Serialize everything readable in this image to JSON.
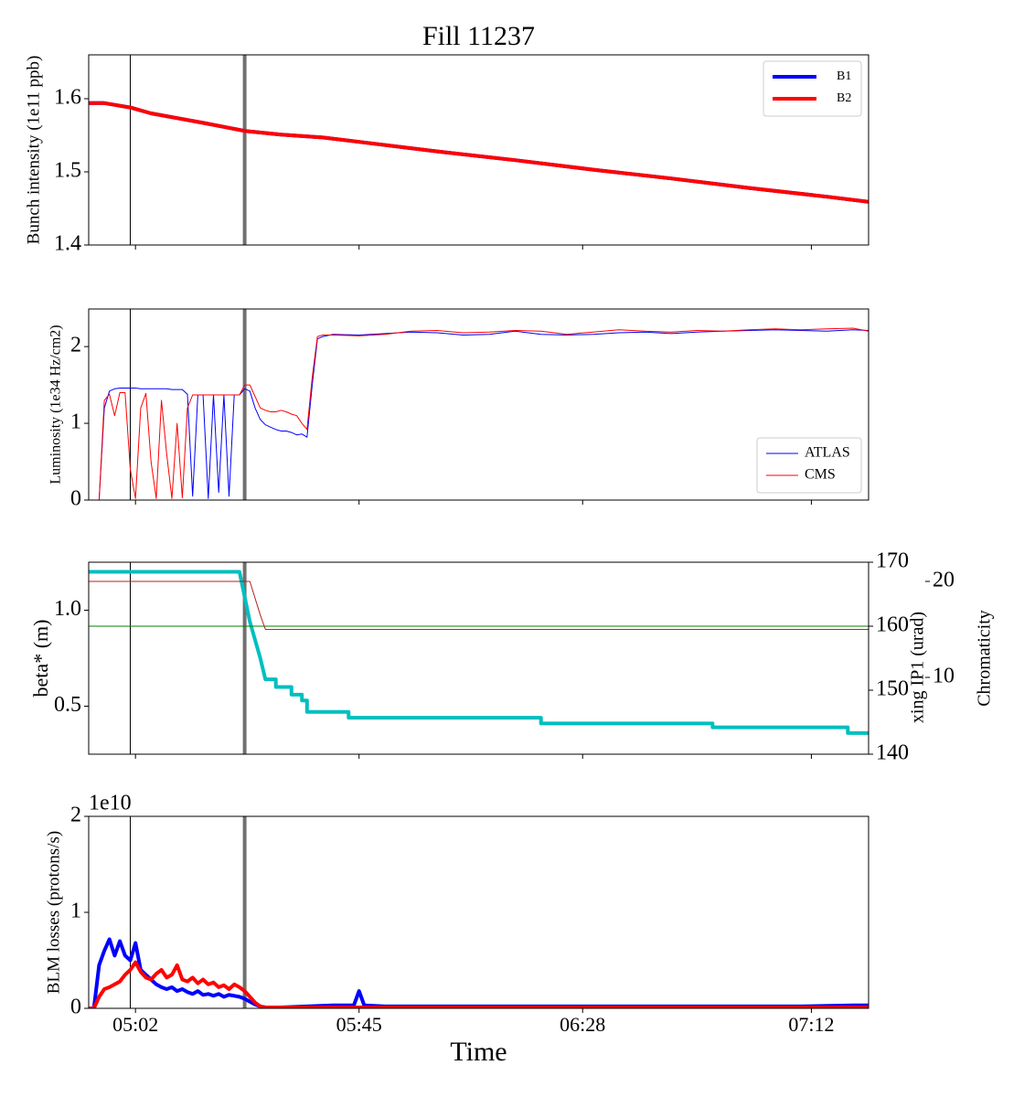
{
  "chart_data": [
    {
      "type": "line",
      "title": "Fill 11237",
      "ylabel": "Bunch intensity (1e11 ppb)",
      "x": [
        "04:53",
        "04:56",
        "05:01",
        "05:05",
        "05:15",
        "05:23",
        "05:30",
        "05:38",
        "05:45",
        "06:00",
        "06:15",
        "06:30",
        "06:45",
        "07:00",
        "07:15",
        "07:23"
      ],
      "series": [
        {
          "name": "B1",
          "color": "#0000ff",
          "values": [
            1.594,
            1.594,
            1.588,
            1.58,
            1.567,
            1.556,
            1.551,
            1.547,
            1.541,
            1.528,
            1.516,
            1.503,
            1.491,
            1.478,
            1.466,
            1.459
          ]
        },
        {
          "name": "B2",
          "color": "#ff0000",
          "values": [
            1.594,
            1.594,
            1.588,
            1.58,
            1.567,
            1.556,
            1.551,
            1.547,
            1.541,
            1.528,
            1.516,
            1.503,
            1.491,
            1.478,
            1.466,
            1.459
          ]
        }
      ],
      "xlim": [
        "04:53",
        "07:23"
      ],
      "xticks": [
        "05:02",
        "05:45",
        "06:28",
        "07:12"
      ],
      "ylim": [
        1.4,
        1.66
      ],
      "yticks": [
        1.4,
        1.5,
        1.6
      ],
      "legend": "upper right",
      "vlines": [
        {
          "x": "05:01",
          "color": "#000000"
        },
        {
          "x": "05:23",
          "color": "#707070"
        }
      ]
    },
    {
      "type": "line",
      "ylabel": "Luminosity (1e34 Hz/cm2)",
      "x": [
        "04:53",
        "04:54",
        "04:55",
        "04:56",
        "04:57",
        "04:58",
        "04:59",
        "05:00",
        "05:01",
        "05:02",
        "05:03",
        "05:04",
        "05:05",
        "05:06",
        "05:07",
        "05:08",
        "05:09",
        "05:10",
        "05:11",
        "05:12",
        "05:13",
        "05:14",
        "05:15",
        "05:16",
        "05:17",
        "05:18",
        "05:19",
        "05:20",
        "05:21",
        "05:22",
        "05:23",
        "05:24",
        "05:25",
        "05:26",
        "05:27",
        "05:28",
        "05:29",
        "05:30",
        "05:31",
        "05:32",
        "05:33",
        "05:34",
        "05:35",
        "05:36",
        "05:37",
        "05:38",
        "05:40",
        "05:45",
        "05:50",
        "05:55",
        "06:00",
        "06:05",
        "06:10",
        "06:15",
        "06:20",
        "06:25",
        "06:30",
        "06:35",
        "06:40",
        "06:45",
        "06:50",
        "06:55",
        "07:00",
        "07:05",
        "07:10",
        "07:15",
        "07:20",
        "07:23"
      ],
      "series": [
        {
          "name": "ATLAS",
          "color": "#0000ff",
          "values": [
            0,
            0,
            0,
            1.2,
            1.42,
            1.45,
            1.46,
            1.46,
            1.46,
            1.46,
            1.45,
            1.45,
            1.45,
            1.45,
            1.45,
            1.45,
            1.44,
            1.44,
            1.44,
            1.38,
            0.05,
            1.37,
            1.37,
            0.02,
            1.37,
            0.1,
            1.37,
            0.05,
            1.37,
            1.37,
            1.45,
            1.42,
            1.2,
            1.05,
            0.98,
            0.95,
            0.92,
            0.9,
            0.9,
            0.88,
            0.85,
            0.86,
            0.82,
            1.5,
            2.1,
            2.13,
            2.16,
            2.15,
            2.17,
            2.19,
            2.18,
            2.15,
            2.16,
            2.2,
            2.16,
            2.15,
            2.16,
            2.18,
            2.19,
            2.17,
            2.19,
            2.2,
            2.21,
            2.22,
            2.21,
            2.2,
            2.22,
            2.21
          ]
        },
        {
          "name": "CMS",
          "color": "#ff0000",
          "values": [
            0,
            0,
            0,
            1.3,
            1.38,
            1.1,
            1.4,
            1.4,
            0.4,
            0.02,
            1.2,
            1.39,
            0.5,
            0.02,
            1.3,
            0.6,
            0.02,
            1.0,
            0.03,
            1.2,
            1.37,
            1.37,
            1.37,
            1.37,
            1.37,
            1.37,
            1.37,
            1.37,
            1.37,
            1.37,
            1.5,
            1.5,
            1.35,
            1.2,
            1.17,
            1.15,
            1.15,
            1.17,
            1.15,
            1.12,
            1.1,
            1.0,
            0.92,
            1.6,
            2.13,
            2.15,
            2.15,
            2.14,
            2.16,
            2.2,
            2.21,
            2.18,
            2.19,
            2.21,
            2.2,
            2.16,
            2.19,
            2.22,
            2.2,
            2.19,
            2.21,
            2.2,
            2.22,
            2.23,
            2.22,
            2.23,
            2.24,
            2.2
          ]
        }
      ],
      "xlim": [
        "04:53",
        "07:23"
      ],
      "xticks": [
        "05:02",
        "05:45",
        "06:28",
        "07:12"
      ],
      "ylim": [
        0,
        2.49
      ],
      "yticks": [
        0,
        1,
        2
      ],
      "legend": "lower right",
      "vlines": [
        {
          "x": "05:01",
          "color": "#000000"
        },
        {
          "x": "05:23",
          "color": "#707070"
        }
      ]
    },
    {
      "type": "line",
      "ylabel": "beta* (m)",
      "y2label": "xing IP1 (urad)",
      "y3label": "Chromaticity",
      "x": [
        "04:53",
        "05:22",
        "05:24",
        "05:26",
        "05:27",
        "05:29",
        "05:29",
        "05:32",
        "05:32",
        "05:34",
        "05:34",
        "05:35",
        "05:35",
        "05:43",
        "05:43",
        "06:20",
        "06:20",
        "06:53",
        "06:53",
        "07:19",
        "07:19",
        "07:23"
      ],
      "series": [
        {
          "name": "beta*",
          "color": "#00bfbf",
          "values": [
            1.2,
            1.2,
            0.94,
            0.75,
            0.64,
            0.64,
            0.6,
            0.6,
            0.56,
            0.56,
            0.53,
            0.53,
            0.47,
            0.47,
            0.44,
            0.44,
            0.41,
            0.41,
            0.39,
            0.39,
            0.36,
            0.36
          ]
        },
        {
          "name": "xing IP1",
          "color": "#008000",
          "axis": "y2",
          "values": [
            160,
            160,
            160,
            160,
            160,
            160,
            160,
            160,
            160,
            160,
            160,
            160,
            160,
            160,
            160,
            160,
            160,
            160,
            160,
            160,
            160,
            160
          ]
        },
        {
          "name": "Chromaticity",
          "color": "#b22222",
          "axis": "y3",
          "values": [
            20,
            20,
            20,
            16.5,
            15,
            15,
            15,
            15,
            15,
            15,
            15,
            15,
            15,
            15,
            15,
            15,
            15,
            15,
            15,
            15,
            15,
            15
          ]
        }
      ],
      "xlim": [
        "04:53",
        "07:23"
      ],
      "xticks": [
        "05:02",
        "05:45",
        "06:28",
        "07:12"
      ],
      "ylim": [
        0.25,
        1.25
      ],
      "yticks": [
        0.5,
        {
          "value": 1,
          "label": "1.0"
        }
      ],
      "y2lim": [
        140,
        170
      ],
      "y2ticks": [
        140,
        150,
        160,
        170
      ],
      "y3lim": [
        2,
        22
      ],
      "y3ticks": [
        10,
        20
      ],
      "vlines": [
        {
          "x": "05:01",
          "color": "#000000"
        },
        {
          "x": "05:23",
          "color": "#707070"
        }
      ]
    },
    {
      "type": "line",
      "ylabel": "BLM losses (protons/s)",
      "offset_label": "1e10",
      "xlabel": "Time",
      "x": [
        "04:53",
        "04:54",
        "04:55",
        "04:56",
        "04:57",
        "04:58",
        "04:59",
        "05:00",
        "05:01",
        "05:02",
        "05:03",
        "05:04",
        "05:05",
        "05:06",
        "05:07",
        "05:08",
        "05:09",
        "05:10",
        "05:11",
        "05:12",
        "05:13",
        "05:14",
        "05:15",
        "05:16",
        "05:17",
        "05:18",
        "05:19",
        "05:20",
        "05:21",
        "05:22",
        "05:23",
        "05:24",
        "05:25",
        "05:26",
        "05:27",
        "05:28",
        "05:29",
        "05:30",
        "05:35",
        "05:40",
        "05:44",
        "05:45",
        "05:46",
        "05:50",
        "06:00",
        "06:10",
        "06:20",
        "06:30",
        "06:40",
        "06:50",
        "07:00",
        "07:10",
        "07:20",
        "07:23"
      ],
      "series": [
        {
          "name": "B1",
          "color": "#0000ff",
          "values": [
            0,
            0,
            0.45,
            0.6,
            0.72,
            0.55,
            0.7,
            0.55,
            0.5,
            0.68,
            0.4,
            0.35,
            0.3,
            0.25,
            0.22,
            0.2,
            0.22,
            0.18,
            0.2,
            0.17,
            0.15,
            0.18,
            0.14,
            0.15,
            0.13,
            0.15,
            0.12,
            0.14,
            0.13,
            0.12,
            0.1,
            0.07,
            0.04,
            0.02,
            0.01,
            0.01,
            0.01,
            0.01,
            0.02,
            0.03,
            0.03,
            0.18,
            0.03,
            0.02,
            0.02,
            0.02,
            0.02,
            0.02,
            0.02,
            0.02,
            0.02,
            0.02,
            0.03,
            0.03
          ]
        },
        {
          "name": "B2",
          "color": "#ff0000",
          "values": [
            0,
            0,
            0.12,
            0.2,
            0.22,
            0.25,
            0.28,
            0.35,
            0.4,
            0.48,
            0.38,
            0.32,
            0.3,
            0.36,
            0.4,
            0.32,
            0.35,
            0.45,
            0.3,
            0.28,
            0.32,
            0.26,
            0.3,
            0.25,
            0.27,
            0.22,
            0.24,
            0.2,
            0.25,
            0.22,
            0.18,
            0.12,
            0.06,
            0.02,
            0.01,
            0.01,
            0.01,
            0.01,
            0.01,
            0.01,
            0.01,
            0.01,
            0.01,
            0.01,
            0.01,
            0.01,
            0.01,
            0.01,
            0.01,
            0.01,
            0.01,
            0.01,
            0.01,
            0.01
          ]
        }
      ],
      "xlim": [
        "04:53",
        "07:23"
      ],
      "xticks": [
        "05:02",
        "05:45",
        "06:28",
        "07:12"
      ],
      "ylim": [
        0,
        2
      ],
      "yticks": [
        0,
        1,
        2
      ],
      "vlines": [
        {
          "x": "05:01",
          "color": "#000000"
        },
        {
          "x": "05:23",
          "color": "#707070"
        }
      ]
    }
  ]
}
